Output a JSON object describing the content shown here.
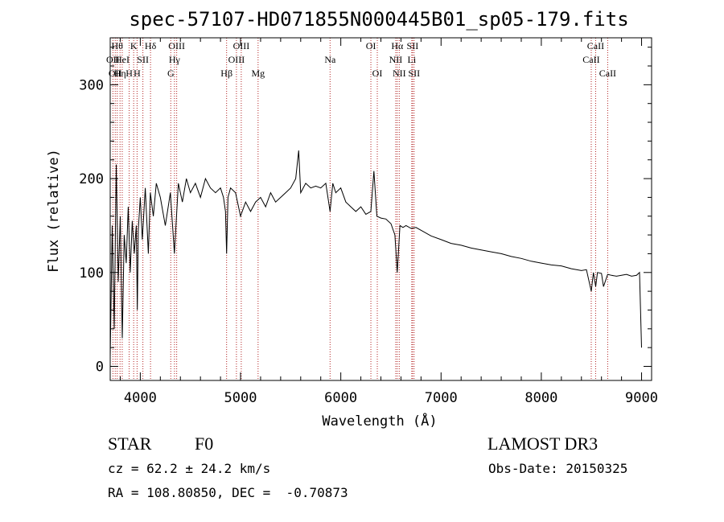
{
  "chart_data": {
    "type": "line",
    "title": "spec-57107-HD071855N000445B01_sp05-179.fits",
    "xlabel": "Wavelength (Å)",
    "ylabel": "Flux (relative)",
    "xlim": [
      3700,
      9100
    ],
    "ylim": [
      -15,
      350
    ],
    "xticks": [
      4000,
      5000,
      6000,
      7000,
      8000,
      9000
    ],
    "yticks": [
      0,
      100,
      200,
      300
    ],
    "xtick_labels": [
      "4000",
      "5000",
      "6000",
      "7000",
      "8000",
      "9000"
    ],
    "ytick_labels": [
      "0",
      "100",
      "200",
      "300"
    ],
    "grid": false,
    "series": [
      {
        "name": "flux",
        "x": [
          3700,
          3720,
          3740,
          3760,
          3780,
          3800,
          3820,
          3840,
          3860,
          3880,
          3900,
          3920,
          3940,
          3960,
          3970,
          3980,
          4000,
          4020,
          4050,
          4080,
          4100,
          4130,
          4160,
          4200,
          4250,
          4300,
          4340,
          4380,
          4420,
          4460,
          4500,
          4550,
          4600,
          4650,
          4700,
          4750,
          4800,
          4830,
          4850,
          4861,
          4875,
          4900,
          4950,
          5000,
          5050,
          5100,
          5150,
          5200,
          5250,
          5300,
          5350,
          5400,
          5450,
          5500,
          5550,
          5580,
          5600,
          5650,
          5700,
          5750,
          5800,
          5850,
          5893,
          5920,
          5950,
          6000,
          6050,
          6100,
          6150,
          6200,
          6250,
          6300,
          6330,
          6360,
          6400,
          6450,
          6500,
          6540,
          6563,
          6590,
          6620,
          6650,
          6700,
          6750,
          6800,
          6900,
          7000,
          7100,
          7200,
          7300,
          7400,
          7500,
          7600,
          7700,
          7800,
          7900,
          8000,
          8100,
          8200,
          8300,
          8400,
          8450,
          8498,
          8520,
          8542,
          8560,
          8600,
          8620,
          8662,
          8700,
          8750,
          8800,
          8850,
          8900,
          8950,
          8980,
          9000
        ],
        "values": [
          10,
          150,
          40,
          215,
          90,
          160,
          30,
          140,
          110,
          170,
          100,
          155,
          120,
          150,
          60,
          145,
          180,
          135,
          190,
          120,
          185,
          160,
          195,
          180,
          150,
          185,
          120,
          195,
          175,
          200,
          185,
          195,
          180,
          200,
          190,
          185,
          190,
          180,
          165,
          120,
          180,
          190,
          185,
          160,
          175,
          165,
          175,
          180,
          170,
          185,
          175,
          180,
          185,
          190,
          200,
          230,
          185,
          195,
          190,
          192,
          190,
          195,
          165,
          195,
          185,
          190,
          175,
          170,
          165,
          170,
          162,
          165,
          208,
          160,
          158,
          157,
          152,
          140,
          100,
          150,
          148,
          150,
          147,
          148,
          145,
          139,
          135,
          131,
          129,
          126,
          124,
          122,
          120,
          117,
          115,
          112,
          110,
          108,
          107,
          104,
          102,
          103,
          80,
          100,
          85,
          100,
          99,
          85,
          98,
          97,
          96,
          97,
          98,
          96,
          97,
          100,
          20
        ]
      }
    ],
    "lines": [
      {
        "x": 3727,
        "label": "OII",
        "row": 2
      },
      {
        "x": 3750,
        "label": "OII",
        "row": 3
      },
      {
        "x": 3770,
        "label": "Hθ",
        "row": 1
      },
      {
        "x": 3798,
        "label": "Hη",
        "row": 3
      },
      {
        "x": 3820,
        "label": "HeI",
        "row": 2
      },
      {
        "x": 3889,
        "label": "H",
        "row": 3
      },
      {
        "x": 3934,
        "label": "K",
        "row": 1
      },
      {
        "x": 3968,
        "label": "H",
        "row": 3
      },
      {
        "x": 4026,
        "label": "SII",
        "row": 2
      },
      {
        "x": 4102,
        "label": "Hδ",
        "row": 1
      },
      {
        "x": 4304,
        "label": "G",
        "row": 3
      },
      {
        "x": 4341,
        "label": "Hγ",
        "row": 2
      },
      {
        "x": 4363,
        "label": "OIII",
        "row": 1
      },
      {
        "x": 4861,
        "label": "Hβ",
        "row": 3
      },
      {
        "x": 4959,
        "label": "OIII",
        "row": 2
      },
      {
        "x": 5007,
        "label": "OIII",
        "row": 1
      },
      {
        "x": 5175,
        "label": "Mg",
        "row": 3
      },
      {
        "x": 5893,
        "label": "Na",
        "row": 2
      },
      {
        "x": 6300,
        "label": "OI",
        "row": 1
      },
      {
        "x": 6364,
        "label": "OI",
        "row": 3
      },
      {
        "x": 6548,
        "label": "NII",
        "row": 2
      },
      {
        "x": 6563,
        "label": "Hα",
        "row": 1
      },
      {
        "x": 6583,
        "label": "NII",
        "row": 3
      },
      {
        "x": 6708,
        "label": "Li",
        "row": 2
      },
      {
        "x": 6716,
        "label": "SII",
        "row": 1
      },
      {
        "x": 6731,
        "label": "SII",
        "row": 3
      },
      {
        "x": 8498,
        "label": "CaII",
        "row": 2
      },
      {
        "x": 8542,
        "label": "CaII",
        "row": 1
      },
      {
        "x": 8662,
        "label": "CaII",
        "row": 3
      }
    ]
  },
  "info": {
    "object_class": "STAR",
    "subclass": "F0",
    "survey": "LAMOST DR3",
    "velocity": "cz = 62.2 ± 24.2 km/s",
    "obs_date": "Obs-Date: 20150325",
    "coords": "RA = 108.80850, DEC =  -0.70873"
  },
  "colors": {
    "line_marker": "#b22222",
    "spectrum": "#000000",
    "axes": "#000000",
    "background": "#ffffff"
  }
}
